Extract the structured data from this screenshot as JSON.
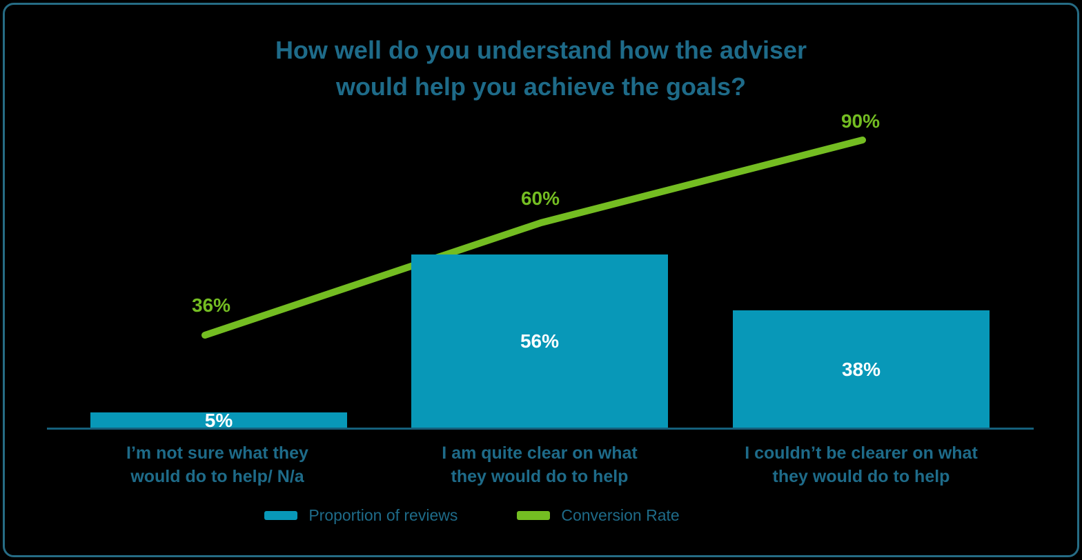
{
  "title": {
    "lines": [
      "How well do you understand how the adviser",
      "would help you achieve the goals?"
    ]
  },
  "chart_data": {
    "type": "bar",
    "title": "How well do you understand how the adviser would help you achieve the goals?",
    "categories": [
      "I’m not sure what they\nwould do to help/ N/a",
      "I am quite clear on what\nthey would do to help",
      "I couldn’t be clearer on what\nthey would do to help"
    ],
    "series": [
      {
        "name": "Proportion of reviews",
        "type": "bar",
        "values": [
          5,
          56,
          38
        ],
        "labels": [
          "5%",
          "56%",
          "38%"
        ],
        "color": "#0898b8"
      },
      {
        "name": "Conversion Rate",
        "type": "line",
        "values": [
          36,
          60,
          90
        ],
        "labels": [
          "36%",
          "60%",
          "90%"
        ],
        "color": "#74bd22"
      }
    ],
    "xlabel": "",
    "ylabel": "",
    "ylim": [
      0,
      100
    ],
    "axes_hidden": true,
    "grid": false,
    "legend_position": "bottom"
  },
  "legend": {
    "items": [
      {
        "label": "Proportion of reviews",
        "color": "#0898b8"
      },
      {
        "label": "Conversion Rate",
        "color": "#74bd22"
      }
    ]
  },
  "colors": {
    "background": "#000000",
    "frame_border": "#266c85",
    "axis_line": "#15607c",
    "text": "#1e6b89",
    "bar_fill": "#0898b8",
    "line_stroke": "#74bd22",
    "bar_value_text": "#ffffff"
  }
}
